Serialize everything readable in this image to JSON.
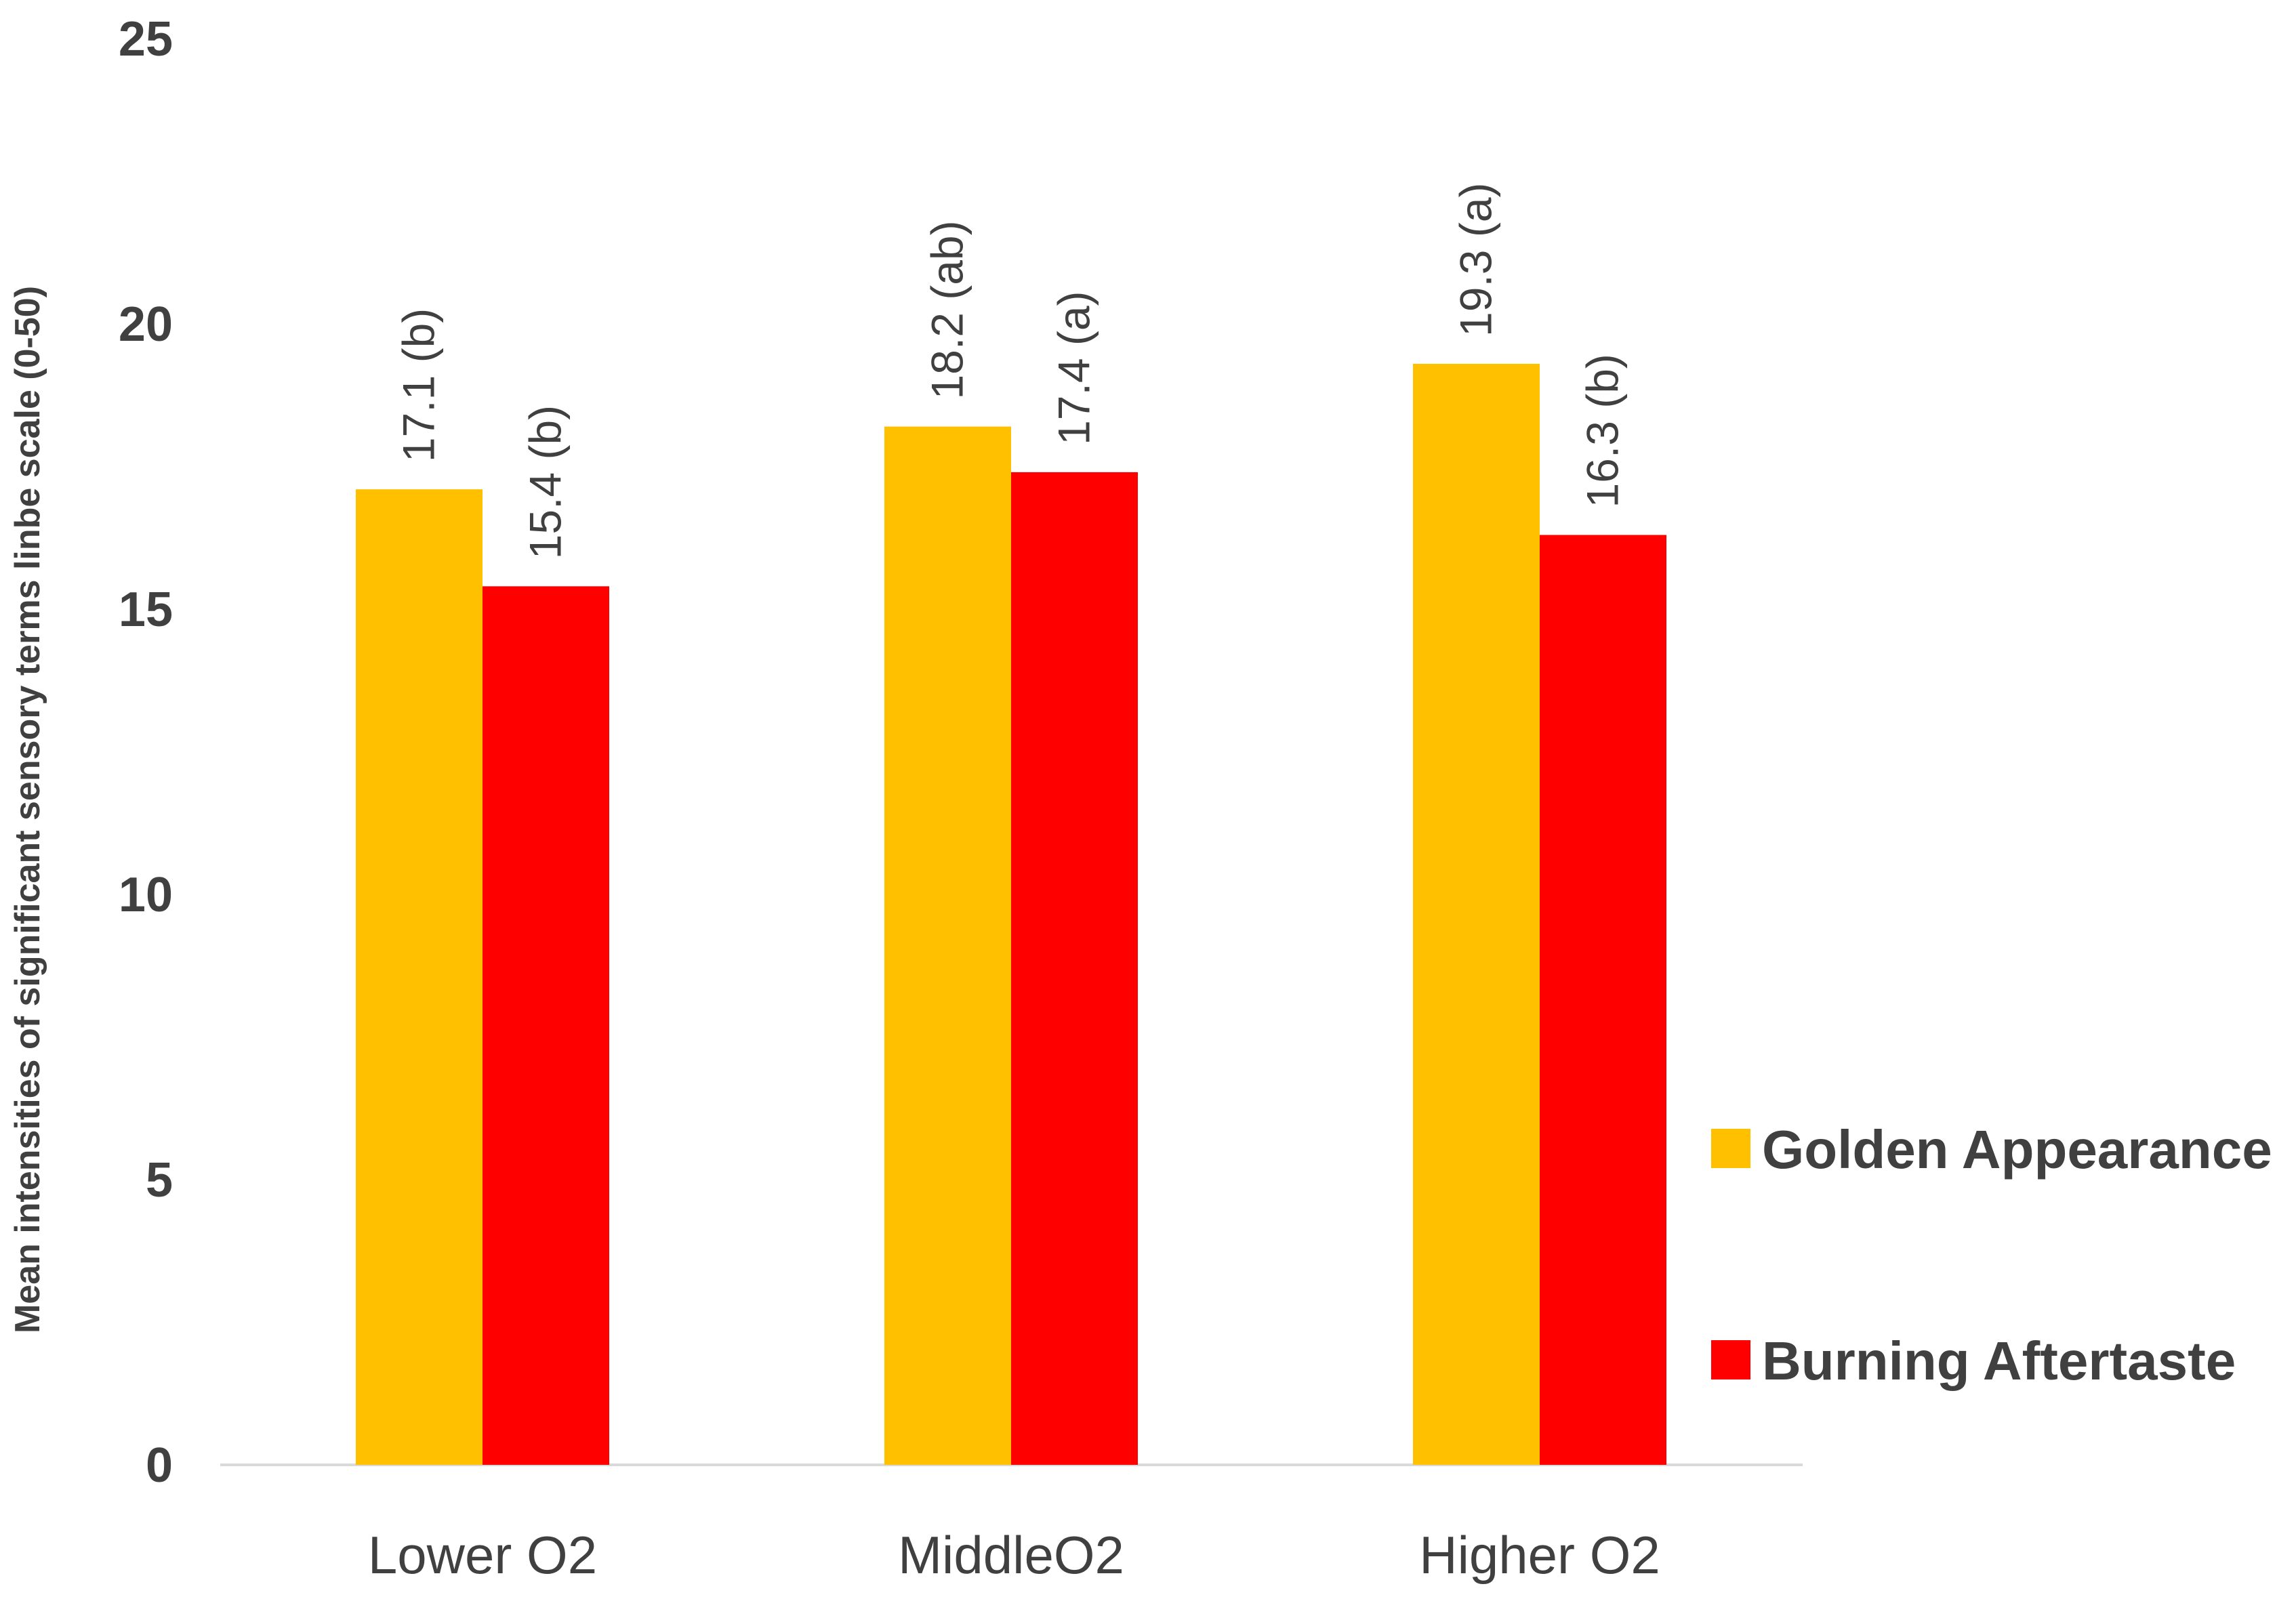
{
  "chart_data": {
    "type": "bar",
    "title": "",
    "xlabel": "",
    "ylabel": "Mean intensities of significant sensory terms  linbe scale  (0-50)",
    "ylim": [
      0,
      25
    ],
    "yticks": [
      0,
      5,
      10,
      15,
      20,
      25
    ],
    "grid": false,
    "legend_position": "right",
    "categories": [
      "Lower O2",
      "MiddleO2",
      "Higher O2"
    ],
    "series": [
      {
        "name": "Golden Appearance",
        "color": "#FFC000",
        "values": [
          17.1,
          18.2,
          19.3
        ],
        "labels": [
          "17.1 (b)",
          "18.2 (ab)",
          "19.3 (a)"
        ]
      },
      {
        "name": "Burning Aftertaste",
        "color": "#FF0000",
        "values": [
          15.4,
          17.4,
          16.3
        ],
        "labels": [
          "15.4 (b)",
          "17.4 (a)",
          "16.3 (b)"
        ]
      }
    ]
  }
}
